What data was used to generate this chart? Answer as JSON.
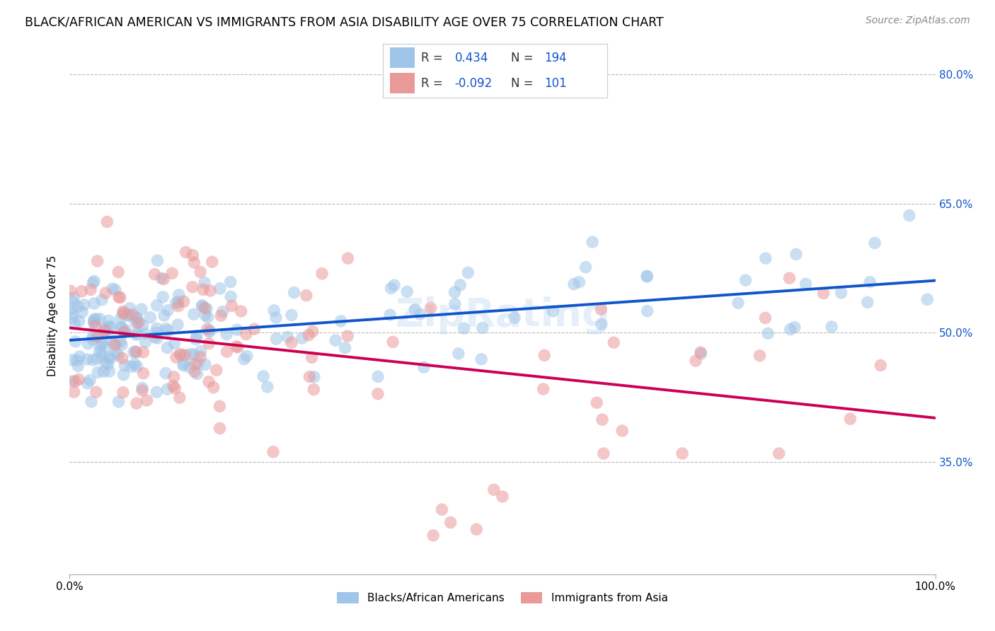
{
  "title": "BLACK/AFRICAN AMERICAN VS IMMIGRANTS FROM ASIA DISABILITY AGE OVER 75 CORRELATION CHART",
  "source": "Source: ZipAtlas.com",
  "ylabel": "Disability Age Over 75",
  "watermark": "ZipRating",
  "blue_label": "Blacks/African Americans",
  "pink_label": "Immigrants from Asia",
  "blue_R": 0.434,
  "blue_N": 194,
  "pink_R": -0.092,
  "pink_N": 101,
  "blue_R_str": "0.434",
  "pink_R_str": "-0.092",
  "blue_N_str": "194",
  "pink_N_str": "101",
  "xlim": [
    0.0,
    1.0
  ],
  "ylim": [
    0.22,
    0.82
  ],
  "yticks": [
    0.35,
    0.5,
    0.65,
    0.8
  ],
  "ytick_labels": [
    "35.0%",
    "50.0%",
    "65.0%",
    "80.0%"
  ],
  "xticks": [
    0.0,
    1.0
  ],
  "xtick_labels": [
    "0.0%",
    "100.0%"
  ],
  "blue_color": "#9fc5e8",
  "pink_color": "#ea9999",
  "blue_scatter_alpha": 0.55,
  "pink_scatter_alpha": 0.55,
  "blue_line_color": "#1155cc",
  "pink_line_color": "#cc0055",
  "title_fontsize": 12.5,
  "source_fontsize": 10,
  "axis_label_fontsize": 11,
  "tick_fontsize": 11,
  "right_tick_color": "#1155cc",
  "background_color": "#ffffff",
  "grid_color": "#bbbbbb",
  "legend_text_color": "#333333",
  "legend_value_color": "#1155cc"
}
